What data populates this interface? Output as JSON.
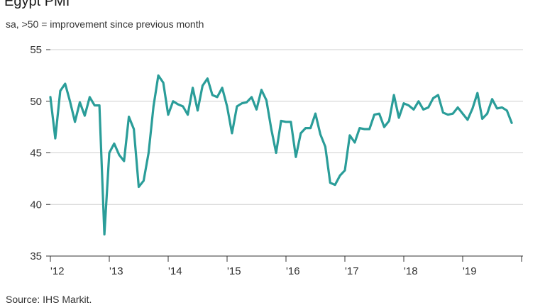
{
  "chart_data": {
    "type": "line",
    "title": "Egypt PMI",
    "subtitle": "sa, >50 = improvement since previous month",
    "source": "Source: IHS Markit.",
    "xlabel": "",
    "ylabel": "",
    "x_tick_labels": [
      "'12",
      "'13",
      "'14",
      "'15",
      "'16",
      "'17",
      "'18",
      "'19"
    ],
    "y_ticks": [
      35,
      40,
      45,
      50,
      55
    ],
    "ylim": [
      35,
      55
    ],
    "xlim": [
      2012.0,
      2019.83
    ],
    "grid": true,
    "legend": "none",
    "series": [
      {
        "color": "#2a9d99",
        "x": [
          2012.0,
          2012.083,
          2012.167,
          2012.25,
          2012.333,
          2012.417,
          2012.5,
          2012.583,
          2012.667,
          2012.75,
          2012.833,
          2012.917,
          2013.0,
          2013.083,
          2013.167,
          2013.25,
          2013.333,
          2013.417,
          2013.5,
          2013.583,
          2013.667,
          2013.75,
          2013.833,
          2013.917,
          2014.0,
          2014.083,
          2014.167,
          2014.25,
          2014.333,
          2014.417,
          2014.5,
          2014.583,
          2014.667,
          2014.75,
          2014.833,
          2014.917,
          2015.0,
          2015.083,
          2015.167,
          2015.25,
          2015.333,
          2015.417,
          2015.5,
          2015.583,
          2015.667,
          2015.75,
          2015.833,
          2015.917,
          2016.0,
          2016.083,
          2016.167,
          2016.25,
          2016.333,
          2016.417,
          2016.5,
          2016.583,
          2016.667,
          2016.75,
          2016.833,
          2016.917,
          2017.0,
          2017.083,
          2017.167,
          2017.25,
          2017.333,
          2017.417,
          2017.5,
          2017.583,
          2017.667,
          2017.75,
          2017.833,
          2017.917,
          2018.0,
          2018.083,
          2018.167,
          2018.25,
          2018.333,
          2018.417,
          2018.5,
          2018.583,
          2018.667,
          2018.75,
          2018.833,
          2018.917,
          2019.0,
          2019.083,
          2019.167,
          2019.25,
          2019.333,
          2019.417,
          2019.5,
          2019.583,
          2019.667,
          2019.75,
          2019.833
        ],
        "y": [
          50.4,
          46.4,
          51.0,
          51.7,
          50.0,
          48.0,
          49.9,
          48.6,
          50.4,
          49.6,
          49.6,
          37.1,
          45.0,
          45.9,
          44.8,
          44.2,
          48.5,
          47.3,
          41.7,
          42.3,
          45.0,
          49.5,
          52.5,
          51.8,
          48.7,
          50.0,
          49.7,
          49.5,
          48.7,
          51.3,
          49.1,
          51.5,
          52.2,
          50.6,
          50.4,
          51.3,
          49.5,
          46.9,
          49.5,
          49.8,
          49.9,
          50.4,
          49.2,
          51.1,
          50.1,
          47.3,
          45.0,
          48.1,
          48.0,
          48.0,
          44.6,
          46.9,
          47.4,
          47.4,
          48.8,
          46.8,
          45.6,
          42.1,
          41.9,
          42.8,
          43.3,
          46.7,
          46.0,
          47.4,
          47.3,
          47.3,
          48.7,
          48.8,
          47.5,
          48.1,
          50.6,
          48.4,
          49.8,
          49.6,
          49.2,
          50.0,
          49.2,
          49.4,
          50.3,
          50.6,
          48.9,
          48.7,
          48.8,
          49.4,
          48.8,
          48.2,
          49.3,
          50.8,
          48.3,
          48.8,
          50.2,
          49.3,
          49.4,
          49.1,
          47.9
        ]
      }
    ]
  }
}
